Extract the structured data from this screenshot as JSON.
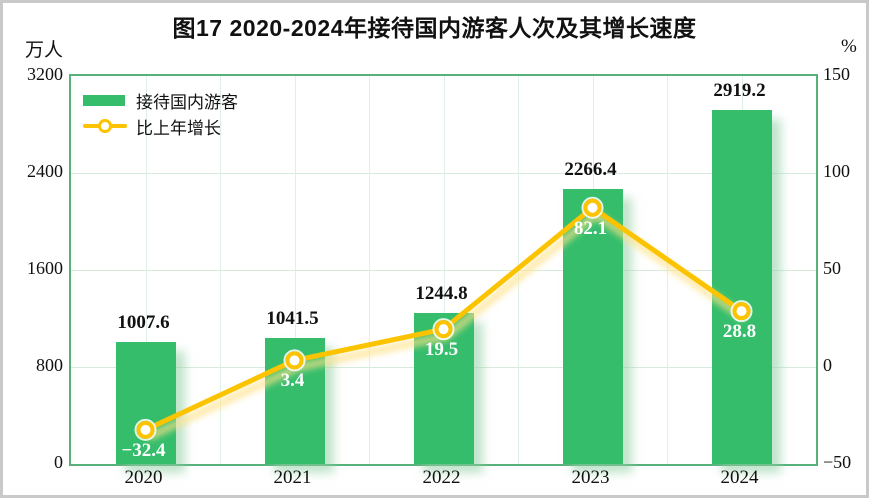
{
  "title": "图17 2020-2024年接待国内游客人次及其增长速度",
  "left_axis": {
    "unit": "万人",
    "ticks": [
      3200,
      2400,
      1600,
      800,
      0
    ]
  },
  "right_axis": {
    "unit": "%",
    "ticks": [
      150,
      100,
      50,
      0,
      -50
    ]
  },
  "legend": {
    "items": [
      {
        "type": "bar",
        "label": "接待国内游客",
        "color": "#35bd6c"
      },
      {
        "type": "line",
        "label": "比上年增长",
        "color": "#fcc300"
      }
    ]
  },
  "colors": {
    "bar": "#35bd6c",
    "bar_shadow": "rgba(140,205,160,0.55)",
    "line": "#fcc300",
    "line_glow": "#ffe289",
    "marker_fill": "#ffffff",
    "grid_h": "#d7ebdd",
    "grid_v": "#def1e5",
    "plot_border": "#57b27a",
    "page_border": "#c9c9c9",
    "value_label": "#111111",
    "growth_label": "#ffffff"
  },
  "chart_data": {
    "type": "bar",
    "subtype": "bar+line dual axis",
    "title": "图17 2020-2024年接待国内游客人次及其增长速度",
    "categories": [
      "2020",
      "2021",
      "2022",
      "2023",
      "2024"
    ],
    "series": [
      {
        "name": "接待国内游客",
        "type": "bar",
        "axis": "left",
        "unit": "万人",
        "values": [
          1007.6,
          1041.5,
          1244.8,
          2266.4,
          2919.2
        ]
      },
      {
        "name": "比上年增长",
        "type": "line",
        "axis": "right",
        "unit": "%",
        "values": [
          -32.4,
          3.4,
          19.5,
          82.1,
          28.8
        ]
      }
    ],
    "left_ylim": [
      0,
      3200
    ],
    "left_step": 800,
    "right_ylim": [
      -50,
      150
    ],
    "right_step": 50,
    "xlabel": "",
    "ylabel_left": "万人",
    "ylabel_right": "%",
    "grid": true,
    "legend_position": "top-left"
  }
}
